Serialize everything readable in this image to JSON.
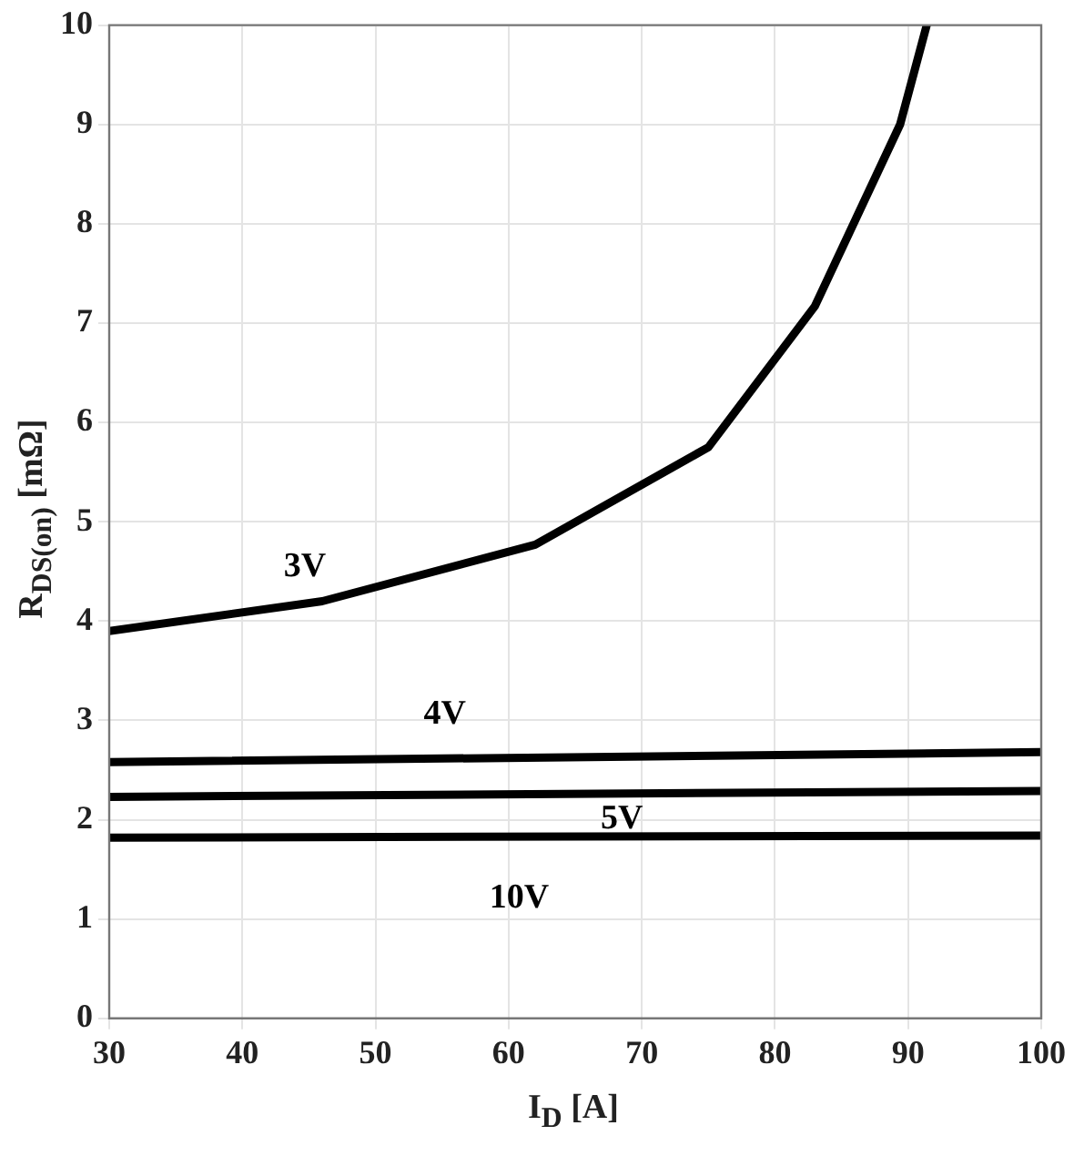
{
  "chart_data": {
    "type": "line",
    "xlabel": "I$_{D}$ [A]",
    "ylabel": "R$_{DS(on)}$ [mΩ]",
    "xlim": [
      30,
      100
    ],
    "xticks": [
      30,
      40,
      50,
      60,
      70,
      80,
      90,
      100
    ],
    "ylim": [
      0,
      10
    ],
    "yticks": [
      0,
      1,
      2,
      3,
      4,
      5,
      6,
      7,
      8,
      9,
      10
    ],
    "grid": true,
    "legend": false,
    "marker": "none",
    "line_style": "solid",
    "series": [
      {
        "name": "3V",
        "color": "#000000",
        "x": [
          30,
          46,
          62,
          75,
          83,
          89.4,
          91.4
        ],
        "values": [
          3.9,
          4.2,
          4.77,
          5.75,
          7.17,
          9,
          10
        ]
      },
      {
        "name": "4V",
        "color": "#000000",
        "x": [
          30,
          100
        ],
        "values": [
          2.58,
          2.68
        ]
      },
      {
        "name": "5V",
        "color": "#000000",
        "x": [
          30,
          100
        ],
        "values": [
          2.23,
          2.29
        ]
      },
      {
        "name": "10V",
        "color": "#000000",
        "x": [
          30,
          100
        ],
        "values": [
          1.82,
          1.84
        ]
      }
    ]
  }
}
